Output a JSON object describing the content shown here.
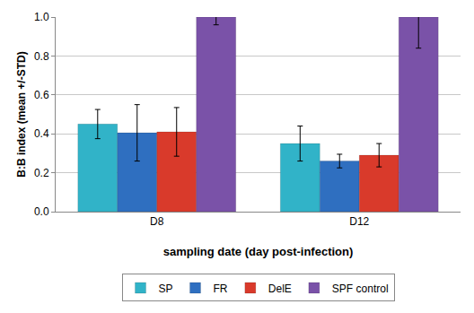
{
  "chart_data": {
    "type": "bar",
    "x_label": "sampling date (day post-infection)",
    "y_label": "B:B index (mean +/-STD)",
    "categories": [
      "D8",
      "D12"
    ],
    "series": [
      {
        "name": "SP",
        "color": "#31b3c8",
        "values": [
          0.45,
          0.35
        ],
        "errors": [
          0.075,
          0.09
        ]
      },
      {
        "name": "FR",
        "color": "#2f6fc0",
        "values": [
          0.405,
          0.26
        ],
        "errors": [
          0.145,
          0.035
        ]
      },
      {
        "name": "DelE",
        "color": "#d93a2b",
        "values": [
          0.41,
          0.29
        ],
        "errors": [
          0.125,
          0.06
        ]
      },
      {
        "name": "SPF control",
        "color": "#7a52a8",
        "values": [
          1.0,
          1.0
        ],
        "errors": [
          0.04,
          0.16
        ]
      }
    ],
    "ylim": [
      0,
      1.0
    ],
    "yticks": [
      {
        "value": 0,
        "label": "0.0"
      },
      {
        "value": 0.2,
        "label": "0.2"
      },
      {
        "value": 0.4,
        "label": "0.4"
      },
      {
        "value": 0.6,
        "label": "0.6"
      },
      {
        "value": 0.8,
        "label": "0.8"
      },
      {
        "value": 1.0,
        "label": "1.0"
      }
    ],
    "grid": true,
    "legend": "bottom"
  }
}
